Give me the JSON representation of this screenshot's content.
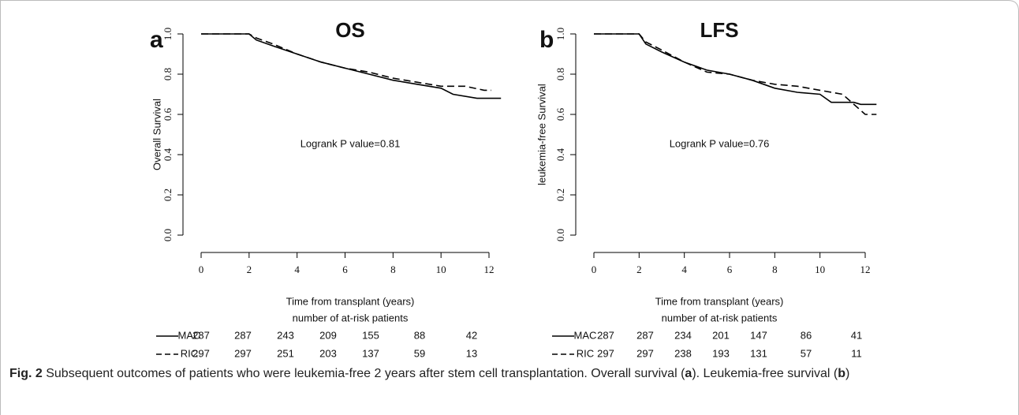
{
  "chart_data": [
    {
      "type": "line",
      "panel": "a",
      "title": "OS",
      "ylabel": "Overall Survival",
      "xlabel": "Time from transplant (years)",
      "annotation": "Logrank P value=0.81",
      "xlim": [
        0,
        12
      ],
      "xticks": [
        0,
        2,
        4,
        6,
        8,
        10,
        12
      ],
      "ylim": [
        0,
        1
      ],
      "yticks": [
        {
          "value": 0,
          "label": "0.0"
        },
        0.2,
        0.4,
        0.6,
        0.8,
        {
          "value": 1,
          "label": "1.0"
        }
      ],
      "risk_title": "number of at-risk patients",
      "series": [
        {
          "name": "MAC",
          "color": "#000000",
          "linestyle": "solid",
          "x": [
            0,
            2,
            2.3,
            3,
            4,
            5,
            6,
            7,
            8,
            9,
            10,
            10.5,
            11.5,
            12.5
          ],
          "values": [
            1,
            1,
            0.97,
            0.94,
            0.9,
            0.86,
            0.83,
            0.8,
            0.77,
            0.75,
            0.73,
            0.7,
            0.68,
            0.68
          ],
          "at_risk": [
            287,
            287,
            243,
            209,
            155,
            88,
            42
          ]
        },
        {
          "name": "RIC",
          "color": "#000000",
          "linestyle": "dashed",
          "x": [
            0,
            2,
            2.3,
            3,
            4,
            5,
            6,
            7,
            8,
            9,
            10,
            11,
            11.8,
            12.1
          ],
          "values": [
            1,
            1,
            0.98,
            0.95,
            0.9,
            0.86,
            0.83,
            0.81,
            0.78,
            0.76,
            0.74,
            0.74,
            0.72,
            0.72
          ],
          "at_risk": [
            297,
            297,
            251,
            203,
            137,
            59,
            13
          ]
        }
      ]
    },
    {
      "type": "line",
      "panel": "b",
      "title": "LFS",
      "ylabel": "leukemia-free Survival",
      "xlabel": "Time from transplant (years)",
      "annotation": "Logrank P value=0.76",
      "xlim": [
        0,
        12
      ],
      "xticks": [
        0,
        2,
        4,
        6,
        8,
        10,
        12
      ],
      "ylim": [
        0,
        1
      ],
      "yticks": [
        {
          "value": 0,
          "label": "0.0"
        },
        0.2,
        0.4,
        0.6,
        0.8,
        {
          "value": 1,
          "label": "1.0"
        }
      ],
      "risk_title": "number of at-risk patients",
      "series": [
        {
          "name": "MAC",
          "color": "#000000",
          "linestyle": "solid",
          "x": [
            0,
            2,
            2.3,
            3,
            4,
            5,
            6,
            7,
            8,
            9,
            10,
            10.5,
            11.5,
            11.8,
            12.5
          ],
          "values": [
            1,
            1,
            0.95,
            0.91,
            0.86,
            0.82,
            0.8,
            0.77,
            0.73,
            0.71,
            0.7,
            0.66,
            0.66,
            0.65,
            0.65
          ],
          "at_risk": [
            287,
            287,
            234,
            201,
            147,
            86,
            41
          ]
        },
        {
          "name": "RIC",
          "color": "#000000",
          "linestyle": "dashed",
          "x": [
            0,
            2,
            2.3,
            3,
            4,
            5,
            6,
            7,
            8,
            9,
            10,
            11,
            11.8,
            12,
            12.5
          ],
          "values": [
            1,
            1,
            0.96,
            0.92,
            0.86,
            0.81,
            0.8,
            0.77,
            0.75,
            0.74,
            0.72,
            0.7,
            0.62,
            0.6,
            0.6
          ],
          "at_risk": [
            297,
            297,
            238,
            193,
            131,
            57,
            11
          ]
        }
      ]
    }
  ],
  "caption": {
    "label": "Fig. 2",
    "parts": [
      "Subsequent outcomes of patients who were leukemia-free 2 years after stem cell transplantation. Overall survival (",
      "a",
      "). Leukemia-free survival (",
      "b",
      ")"
    ]
  }
}
